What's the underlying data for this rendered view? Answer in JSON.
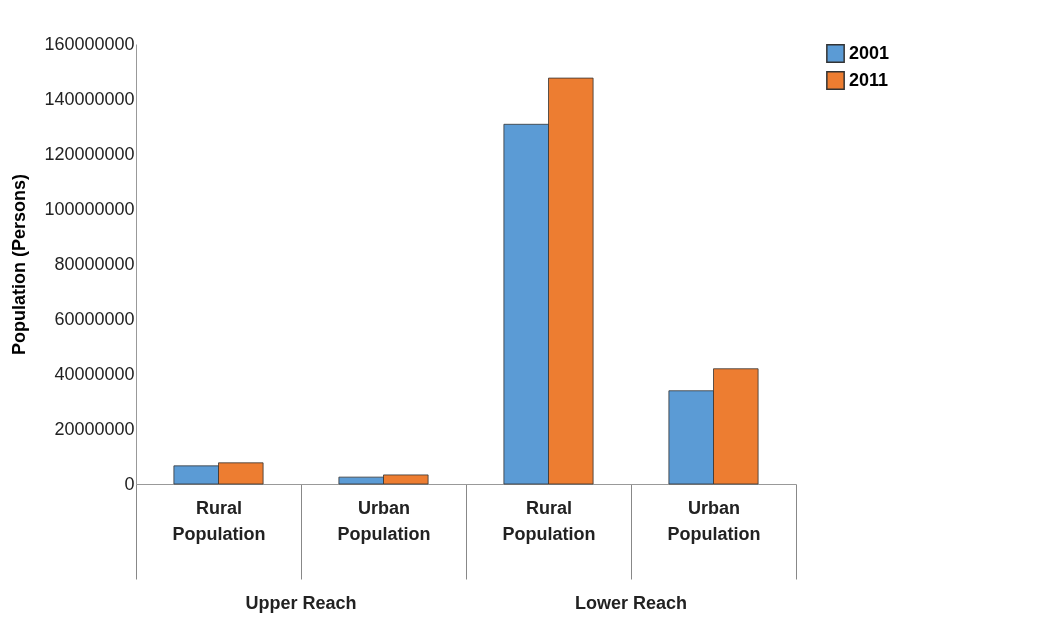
{
  "chart_data": {
    "type": "bar",
    "ylabel": "Population (Persons)",
    "categories": [
      "Rural Population",
      "Urban Population",
      "Rural Population",
      "Urban Population"
    ],
    "series": [
      {
        "name": "2001",
        "color": "#5b9bd5",
        "values": [
          6600000,
          2500000,
          130800000,
          33900000
        ]
      },
      {
        "name": "2011",
        "color": "#ed7d31",
        "values": [
          7700000,
          3300000,
          147600000,
          41900000
        ]
      }
    ],
    "ylim": [
      0,
      160000000
    ],
    "yticks": [
      0,
      20000000,
      40000000,
      60000000,
      80000000,
      100000000,
      120000000,
      140000000,
      160000000
    ],
    "grid": false,
    "legend": "right",
    "annotations": [
      "Upper Reach",
      "Lower Reach"
    ]
  }
}
